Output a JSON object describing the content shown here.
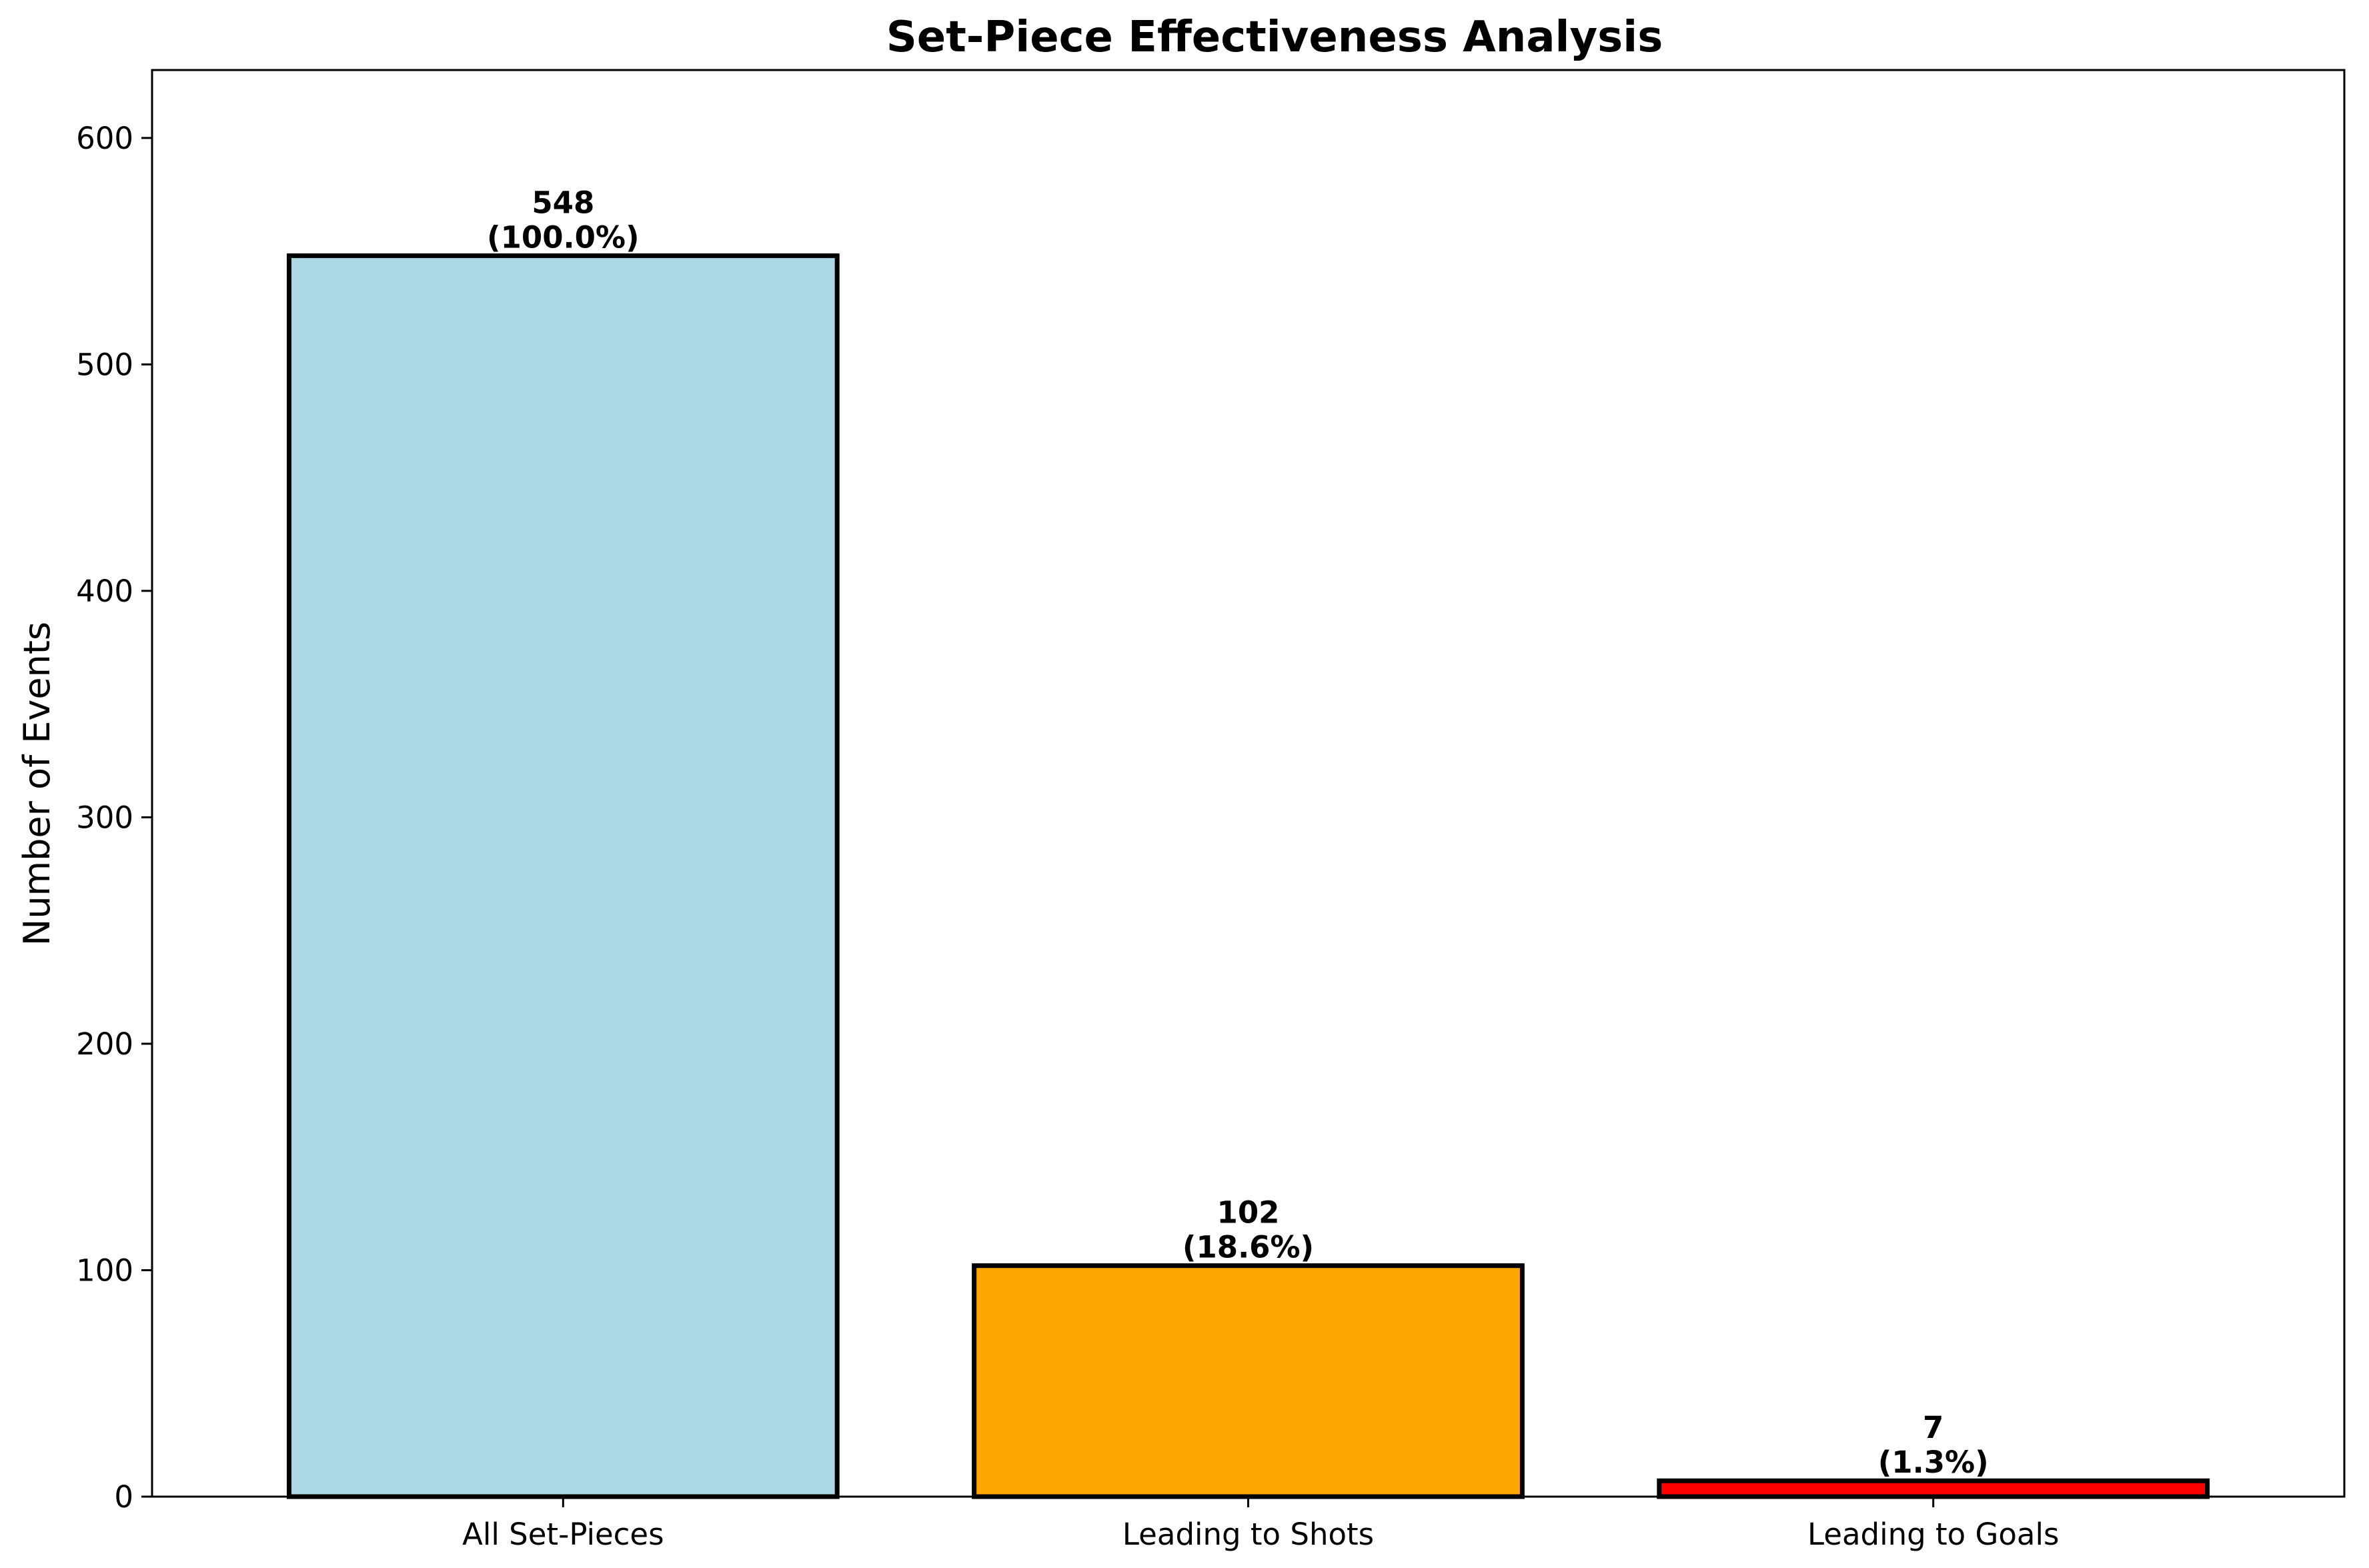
{
  "chart_data": {
    "type": "bar",
    "title": "Set-Piece Effectiveness Analysis",
    "xlabel": "",
    "ylabel": "Number of Events",
    "categories": [
      "All Set-Pieces",
      "Leading to Shots",
      "Leading to Goals"
    ],
    "values": [
      548,
      102,
      7
    ],
    "data_labels": [
      [
        "548",
        "(100.0%)"
      ],
      [
        "102",
        "(18.6%)"
      ],
      [
        "7",
        "(1.3%)"
      ]
    ],
    "colors": [
      "#add8e6",
      "#ffa500",
      "#ff0000"
    ],
    "edge_color": "#000000",
    "ylim": [
      0,
      630
    ],
    "yticks": [
      0,
      100,
      200,
      300,
      400,
      500,
      600
    ],
    "grid": false,
    "legend": "none"
  }
}
